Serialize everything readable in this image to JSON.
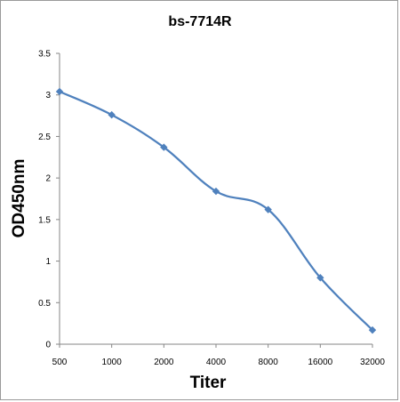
{
  "chart_data": {
    "type": "line",
    "title": "bs-7714R",
    "xlabel": "Titer",
    "ylabel": "OD450nm",
    "categories": [
      "500",
      "1000",
      "2000",
      "4000",
      "8000",
      "16000",
      "32000"
    ],
    "y_ticks": [
      "0",
      "0.5",
      "1",
      "1.5",
      "2",
      "2.5",
      "3",
      "3.5"
    ],
    "series": [
      {
        "values": [
          3.04,
          2.76,
          2.37,
          1.84,
          1.62,
          0.8,
          0.17
        ],
        "color": "#4f81bd",
        "marker": "diamond",
        "smooth": true
      }
    ],
    "ylim": [
      0,
      3.5
    ],
    "grid": false,
    "legend": "none"
  }
}
